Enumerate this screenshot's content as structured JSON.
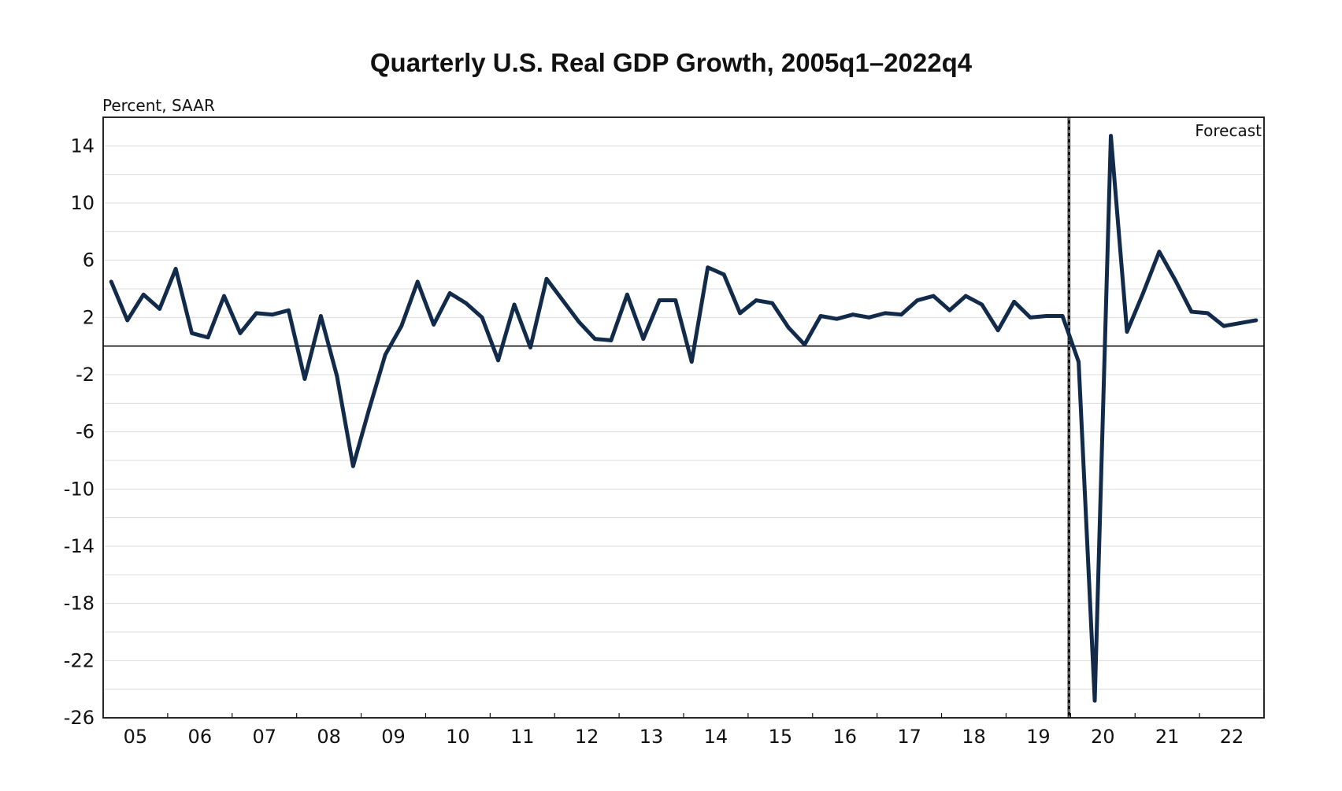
{
  "chart_data": {
    "type": "line",
    "title": "Quarterly U.S. Real GDP Growth, 2005q1–2022q4",
    "ylabel": "Percent, SAAR",
    "xlabel": "",
    "ylim": [
      -26,
      16
    ],
    "yticks": [
      14,
      10,
      6,
      2,
      -2,
      -6,
      -10,
      -14,
      -18,
      -22,
      -26
    ],
    "grid": true,
    "zero_line": true,
    "forecast_label": "Forecast",
    "forecast_start": "2020q1",
    "year_labels": [
      "05",
      "06",
      "07",
      "08",
      "09",
      "10",
      "11",
      "12",
      "13",
      "14",
      "15",
      "16",
      "17",
      "18",
      "19",
      "20",
      "21",
      "22"
    ],
    "x": [
      "2005q1",
      "2005q2",
      "2005q3",
      "2005q4",
      "2006q1",
      "2006q2",
      "2006q3",
      "2006q4",
      "2007q1",
      "2007q2",
      "2007q3",
      "2007q4",
      "2008q1",
      "2008q2",
      "2008q3",
      "2008q4",
      "2009q1",
      "2009q2",
      "2009q3",
      "2009q4",
      "2010q1",
      "2010q2",
      "2010q3",
      "2010q4",
      "2011q1",
      "2011q2",
      "2011q3",
      "2011q4",
      "2012q1",
      "2012q2",
      "2012q3",
      "2012q4",
      "2013q1",
      "2013q2",
      "2013q3",
      "2013q4",
      "2014q1",
      "2014q2",
      "2014q3",
      "2014q4",
      "2015q1",
      "2015q2",
      "2015q3",
      "2015q4",
      "2016q1",
      "2016q2",
      "2016q3",
      "2016q4",
      "2017q1",
      "2017q2",
      "2017q3",
      "2017q4",
      "2018q1",
      "2018q2",
      "2018q3",
      "2018q4",
      "2019q1",
      "2019q2",
      "2019q3",
      "2019q4",
      "2020q1",
      "2020q2",
      "2020q3",
      "2020q4",
      "2021q1",
      "2021q2",
      "2021q3",
      "2021q4",
      "2022q1",
      "2022q2",
      "2022q3",
      "2022q4"
    ],
    "series": [
      {
        "color": "#132b4b",
        "values": [
          4.5,
          1.8,
          3.6,
          2.6,
          5.4,
          0.9,
          0.6,
          3.5,
          0.9,
          2.3,
          2.2,
          2.5,
          -2.3,
          2.1,
          -2.1,
          -8.4,
          -4.4,
          -0.6,
          1.4,
          4.5,
          1.5,
          3.7,
          3.0,
          2.0,
          -1.0,
          2.9,
          -0.1,
          4.7,
          3.2,
          1.7,
          0.5,
          0.4,
          3.6,
          0.5,
          3.2,
          3.2,
          -1.1,
          5.5,
          5.0,
          2.3,
          3.2,
          3.0,
          1.3,
          0.1,
          2.1,
          1.9,
          2.2,
          2.0,
          2.3,
          2.2,
          3.2,
          3.5,
          2.5,
          3.5,
          2.9,
          1.1,
          3.1,
          2.0,
          2.1,
          2.1,
          -1.1,
          -24.8,
          14.7,
          1.0,
          3.7,
          6.6,
          4.6,
          2.4,
          2.3,
          1.4,
          1.6,
          1.8
        ]
      }
    ]
  }
}
